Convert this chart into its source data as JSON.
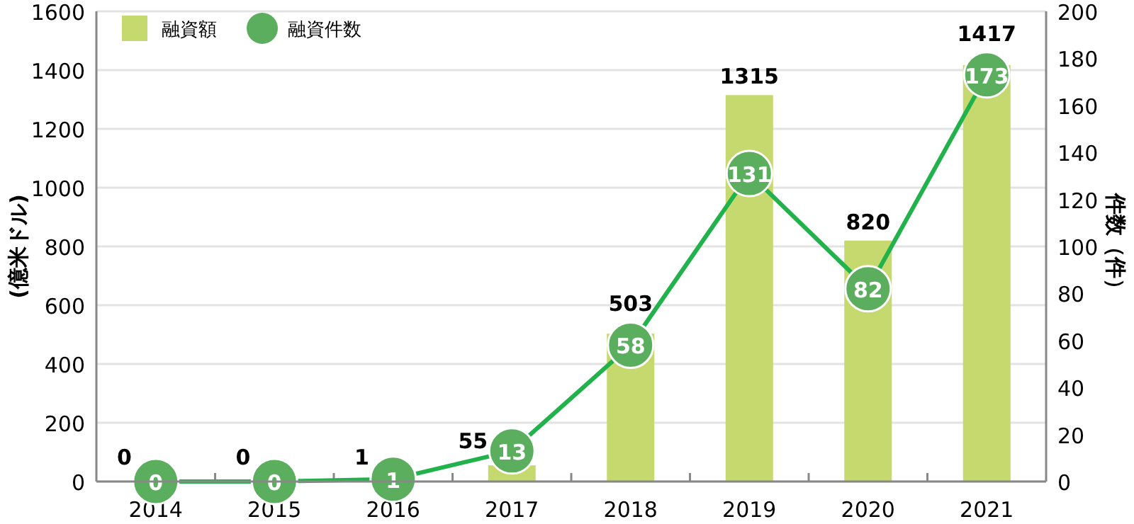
{
  "chart_data": {
    "type": "bar",
    "categories": [
      "2014",
      "2015",
      "2016",
      "2017",
      "2018",
      "2019",
      "2020",
      "2021"
    ],
    "series": [
      {
        "name": "融資額",
        "color": "#c5d96e",
        "values": [
          0,
          0,
          1,
          55,
          503,
          1315,
          820,
          1417
        ]
      },
      {
        "name": "融資件数",
        "type": "line",
        "axis": "y2",
        "color": "#5aae5e",
        "marker": "circle",
        "values": [
          0,
          0,
          1,
          13,
          58,
          131,
          82,
          173
        ]
      }
    ],
    "ylabel": "(億米ドル)",
    "y2label": "件数（件）",
    "ylim": [
      0,
      1600
    ],
    "yticks": [
      0,
      200,
      400,
      600,
      800,
      1000,
      1200,
      1400,
      1600
    ],
    "y2lim": [
      0,
      200
    ],
    "y2ticks": [
      0,
      20,
      40,
      60,
      80,
      100,
      120,
      140,
      160,
      180,
      200
    ],
    "grid": "y",
    "legend": "top left",
    "data_labels": true
  }
}
